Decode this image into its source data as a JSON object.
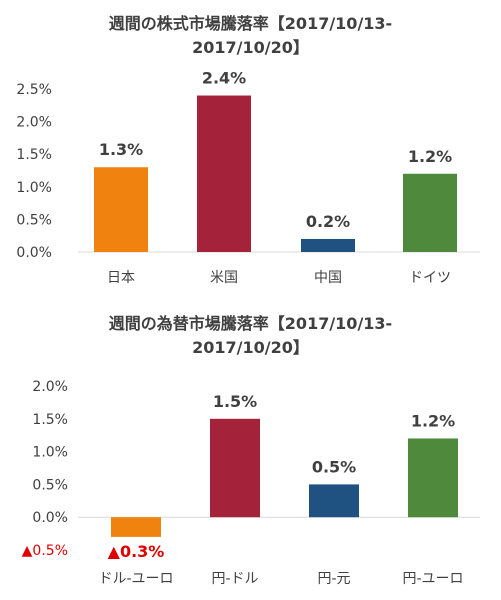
{
  "chart_data": [
    {
      "type": "bar",
      "title_line1": "週間の株式市場騰落率【2017/10/13-",
      "title_line2": "2017/10/20】",
      "categories": [
        "日本",
        "米国",
        "中国",
        "ドイツ"
      ],
      "values": [
        1.3,
        2.4,
        0.2,
        1.2
      ],
      "data_labels": [
        "1.3%",
        "2.4%",
        "0.2%",
        "1.2%"
      ],
      "colors": [
        "#f0820f",
        "#a5233a",
        "#1f5280",
        "#4f8a3c"
      ],
      "ylim": [
        0,
        2.5
      ],
      "yticks": [
        0.0,
        0.5,
        1.0,
        1.5,
        2.0,
        2.5
      ],
      "ytick_labels": [
        "0.0%",
        "0.5%",
        "1.0%",
        "1.5%",
        "2.0%",
        "2.5%"
      ],
      "grid": false
    },
    {
      "type": "bar",
      "title_line1": "週間の為替市場騰落率【2017/10/13-",
      "title_line2": "2017/10/20】",
      "categories": [
        "ドル-ユーロ",
        "円-ドル",
        "円-元",
        "円-ユーロ"
      ],
      "values": [
        -0.3,
        1.5,
        0.5,
        1.2
      ],
      "data_labels": [
        "▲0.3%",
        "1.5%",
        "0.5%",
        "1.2%"
      ],
      "colors": [
        "#f0820f",
        "#a5233a",
        "#1f5280",
        "#4f8a3c"
      ],
      "ylim": [
        -0.5,
        2.0
      ],
      "yticks": [
        -0.5,
        0.0,
        0.5,
        1.0,
        1.5,
        2.0
      ],
      "ytick_labels": [
        "▲0.5%",
        "0.0%",
        "0.5%",
        "1.0%",
        "1.5%",
        "2.0%"
      ],
      "negative_color": "#e00000",
      "grid": false
    }
  ]
}
